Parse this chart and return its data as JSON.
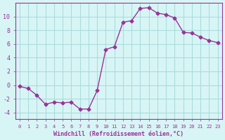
{
  "x": [
    0,
    1,
    2,
    3,
    4,
    5,
    6,
    7,
    8,
    9,
    10,
    11,
    12,
    13,
    14,
    15,
    16,
    17,
    18,
    19,
    20,
    21,
    22,
    23
  ],
  "y": [
    -0.2,
    -0.5,
    -1.5,
    -2.8,
    -2.5,
    -2.6,
    -2.5,
    -3.5,
    -3.5,
    -0.8,
    5.2,
    5.6,
    9.2,
    9.4,
    11.2,
    11.3,
    10.5,
    10.3,
    9.8,
    7.7,
    7.6,
    7.0,
    6.5,
    6.2
  ],
  "line_color": "#993399",
  "marker": "D",
  "marker_size": 2.5,
  "bg_color": "#d8f5f5",
  "grid_color": "#aadddd",
  "xlabel": "Windchill (Refroidissement éolien,°C)",
  "xlabel_color": "#993399",
  "tick_color": "#993399",
  "ylim": [
    -5,
    12
  ],
  "xlim": [
    -0.5,
    23.5
  ],
  "yticks": [
    -4,
    -2,
    0,
    2,
    4,
    6,
    8,
    10
  ],
  "xticks": [
    0,
    1,
    2,
    3,
    4,
    5,
    6,
    7,
    8,
    9,
    10,
    11,
    12,
    13,
    14,
    15,
    16,
    17,
    18,
    19,
    20,
    21,
    22,
    23
  ]
}
